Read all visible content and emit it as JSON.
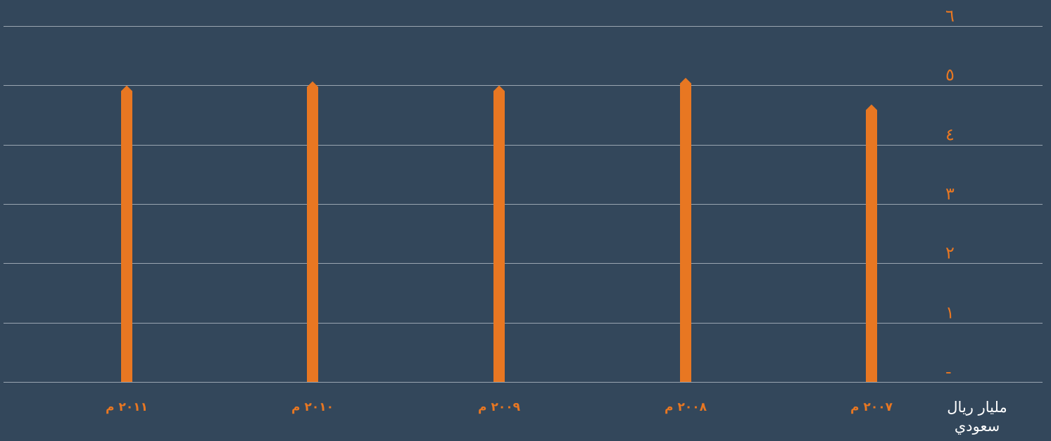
{
  "chart_data": {
    "type": "bar",
    "categories": [
      "٢٠١١ م",
      "٢٠١٠ م",
      "٢٠٠٩ م",
      "٢٠٠٨ م",
      "٢٠٠٧ م"
    ],
    "series": [
      {
        "values": [
          4.95,
          5.02,
          4.95,
          5.08,
          4.63
        ]
      }
    ],
    "y_tick_labels": [
      "-",
      "١",
      "٢",
      "٣",
      "٤",
      "٥",
      "٦"
    ],
    "ylim": [
      0,
      6
    ],
    "y_unit_label": "مليار ريال سعودي",
    "x_axis_direction": "right-to-left",
    "y_axis_position": "right",
    "grid": true,
    "colors": {
      "background": "#33475b",
      "bar": "#e87722",
      "gridline": "#9aa5b1",
      "tick_text": "#e87722",
      "unit_text": "#ffffff"
    }
  }
}
